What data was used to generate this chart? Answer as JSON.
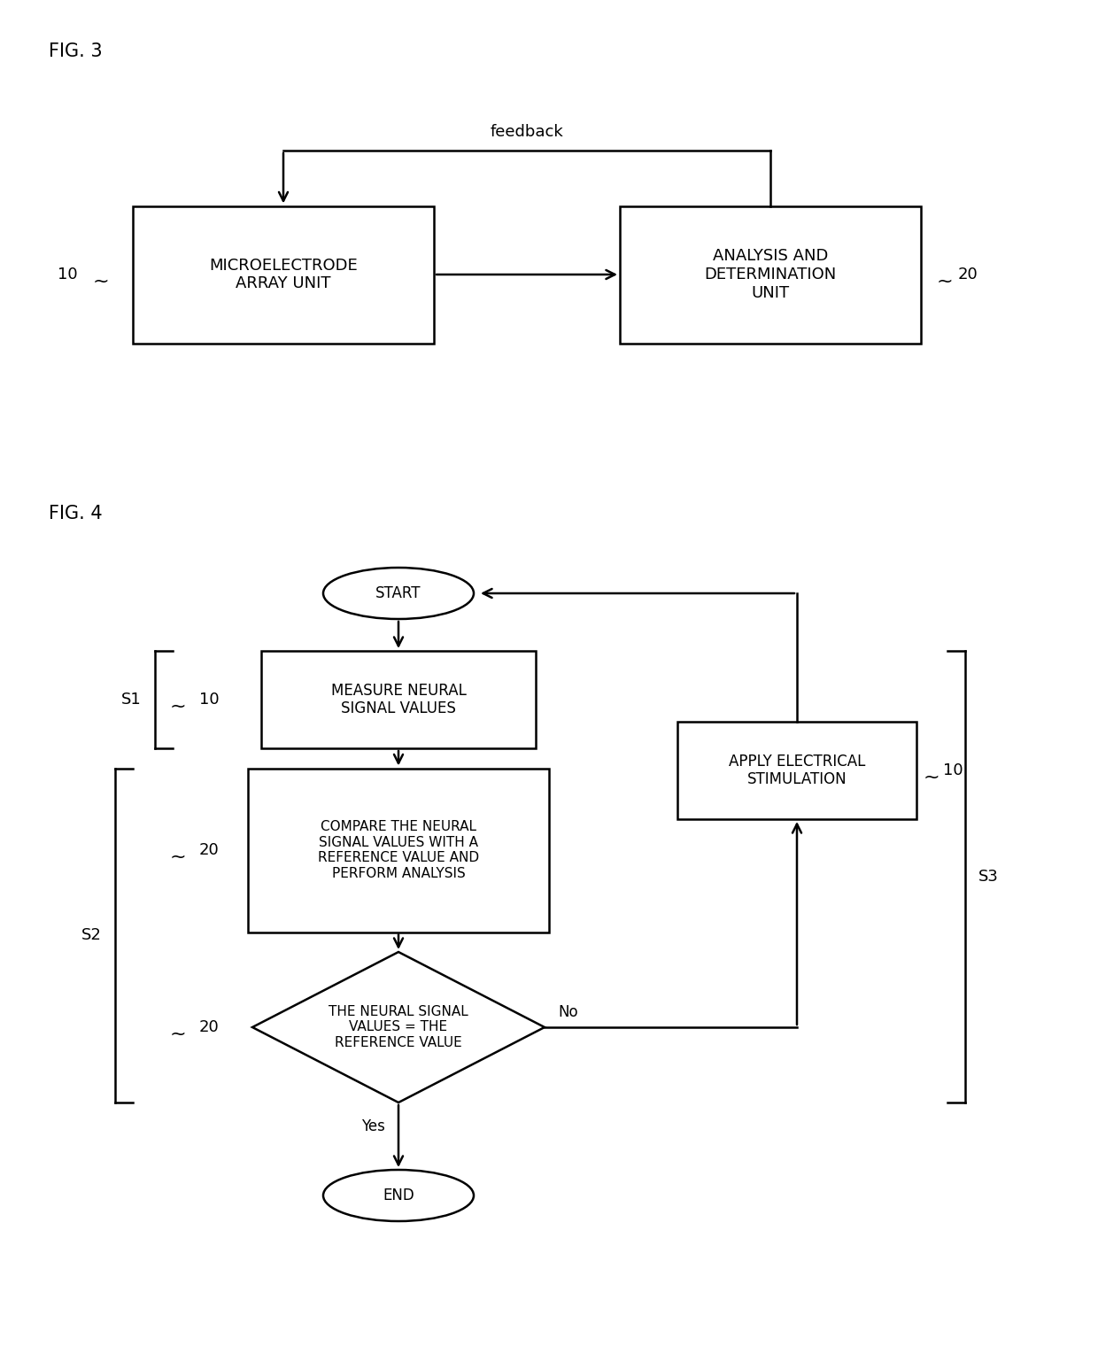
{
  "fig3_title": "FIG. 3",
  "fig4_title": "FIG. 4",
  "background_color": "#ffffff",
  "box_color": "#ffffff",
  "box_edge_color": "#000000",
  "text_color": "#000000",
  "arrow_color": "#000000",
  "fig3": {
    "box1_text": "MICROELECTRODE\nARRAY UNIT",
    "box2_text": "ANALYSIS AND\nDETERMINATION\nUNIT",
    "label1": "10",
    "label2": "20",
    "feedback_label": "feedback"
  },
  "fig4": {
    "start_text": "START",
    "end_text": "END",
    "box1_text": "MEASURE NEURAL\nSIGNAL VALUES",
    "box2_text": "COMPARE THE NEURAL\nSIGNAL VALUES WITH A\nREFERENCE VALUE AND\nPERFORM ANALYSIS",
    "diamond_text": "THE NEURAL SIGNAL\nVALUES = THE\nREFERENCE VALUE",
    "box3_text": "APPLY ELECTRICAL\nSTIMULATION",
    "label_s1": "S1",
    "label_s2": "S2",
    "label_s3": "S3",
    "label_10_s1": "10",
    "label_20_compare": "20",
    "label_20_diamond": "20",
    "label_10_apply": "10",
    "yes_label": "Yes",
    "no_label": "No"
  }
}
